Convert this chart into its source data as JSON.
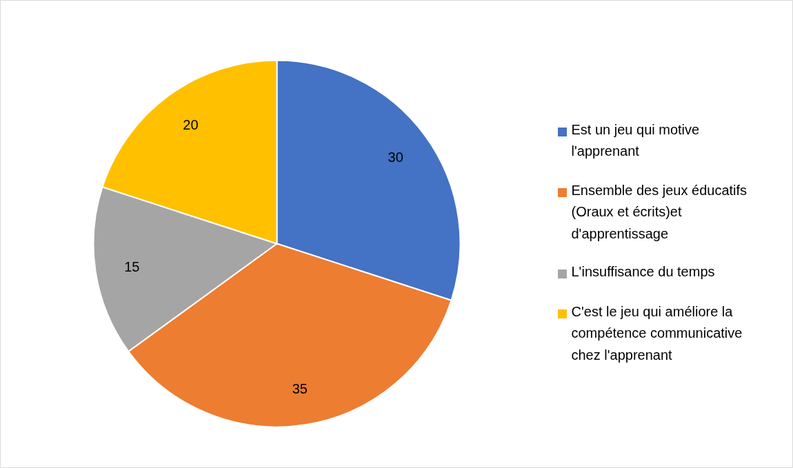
{
  "chart_data": {
    "type": "pie",
    "categories": [
      "Est un jeu qui motive l'apprenant",
      "Ensemble des jeux éducatifs (Oraux et écrits)et d'apprentissage",
      "L'insuffisance du temps",
      "C'est le jeu qui améliore la compétence communicative chez l'apprenant"
    ],
    "values": [
      30,
      35,
      15,
      20
    ],
    "colors": [
      "#4472c4",
      "#ed7d31",
      "#a5a5a5",
      "#ffc000"
    ],
    "data_labels": true,
    "legend": "right"
  }
}
